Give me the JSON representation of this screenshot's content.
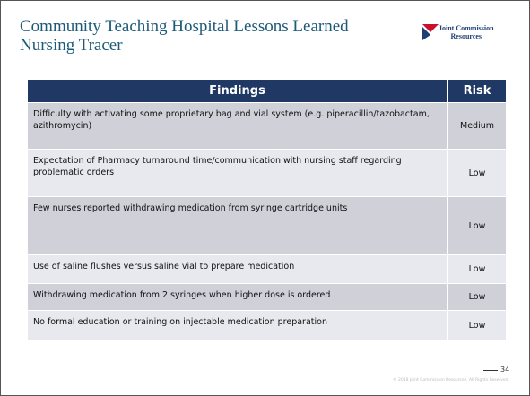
{
  "header": {
    "title_lines": [
      "Community Teaching Hospital Lessons Learned",
      "Nursing Tracer"
    ],
    "logo": {
      "lines": [
        "Joint Commission",
        "Resources"
      ]
    }
  },
  "table": {
    "columns": [
      "Findings",
      "Risk"
    ],
    "rows": [
      [
        "Difficulty with activating some proprietary bag and vial system (e.g. piperacillin/tazobactam, azithromycin)",
        "Medium"
      ],
      [
        "Expectation of Pharmacy turnaround time/communication with nursing staff regarding problematic orders",
        "Low"
      ],
      [
        "Few nurses reported withdrawing medication from syringe cartridge units",
        "Low"
      ],
      [
        "Use of saline flushes versus saline vial to prepare medication",
        "Low"
      ],
      [
        "Withdrawing medication from 2 syringes when higher dose is ordered",
        "Low"
      ],
      [
        "No formal education or training on injectable medication preparation",
        "Low"
      ]
    ]
  },
  "footer": {
    "page_number": "34",
    "copyright": "© 2018 Joint Commission Resources. All Rights Reserved."
  }
}
